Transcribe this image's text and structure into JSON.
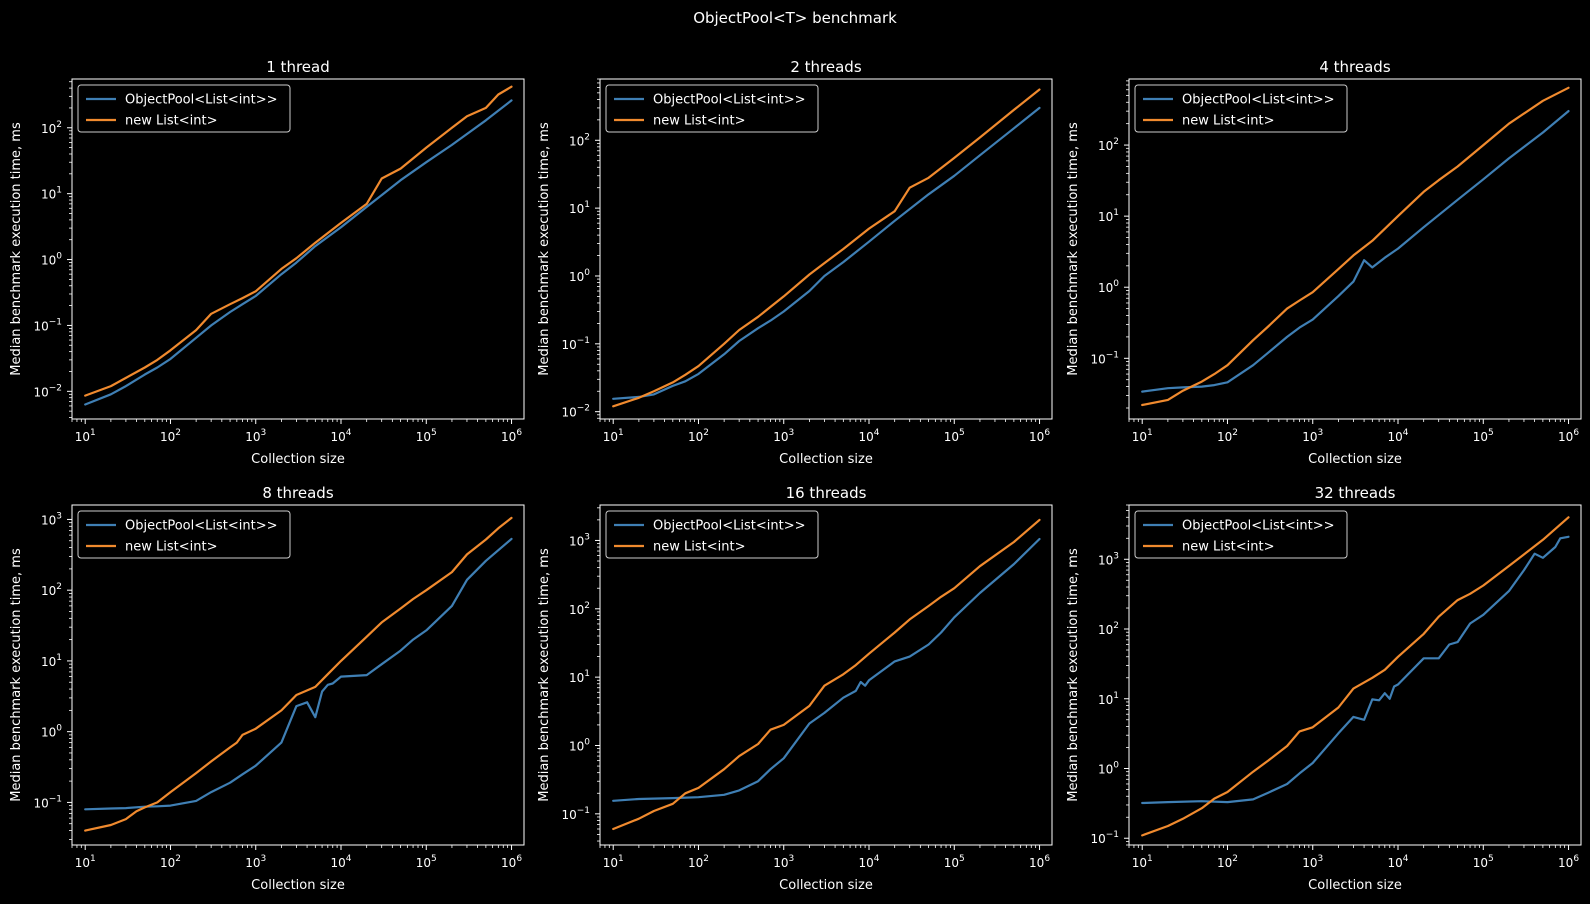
{
  "suptitle": "ObjectPool<T> benchmark",
  "colors": {
    "background": "#000000",
    "foreground": "#ffffff",
    "pool": "#3f7fb4",
    "new": "#f08a2e",
    "legend_edge": "#cccccc"
  },
  "chart_data": [
    {
      "type": "line",
      "title": "1 thread",
      "xlabel": "Collection size",
      "ylabel": "Median benchmark execution time, ms",
      "xscale": "log",
      "yscale": "log",
      "xlim": [
        7,
        1400000
      ],
      "ylim": [
        0.0038,
        550
      ],
      "xticks": [
        10,
        100,
        1000,
        10000,
        100000,
        1000000
      ],
      "xtick_labels": [
        [
          "10",
          "1"
        ],
        [
          "10",
          "2"
        ],
        [
          "10",
          "3"
        ],
        [
          "10",
          "4"
        ],
        [
          "10",
          "5"
        ],
        [
          "10",
          "6"
        ]
      ],
      "yticks": [
        0.01,
        0.1,
        1,
        10,
        100
      ],
      "ytick_labels": [
        [
          "10",
          "−2"
        ],
        [
          "10",
          "−1"
        ],
        [
          "10",
          "0"
        ],
        [
          "10",
          "1"
        ],
        [
          "10",
          "2"
        ]
      ],
      "legend": "upper left",
      "grid": false,
      "series": [
        {
          "name": "ObjectPool<List<int>>",
          "color": "#3f7fb4",
          "x": [
            10,
            20,
            30,
            50,
            70,
            100,
            200,
            300,
            500,
            700,
            1000,
            2000,
            3000,
            5000,
            10000,
            20000,
            30000,
            50000,
            100000,
            200000,
            500000,
            1000000
          ],
          "y": [
            0.0063,
            0.009,
            0.012,
            0.018,
            0.023,
            0.031,
            0.065,
            0.1,
            0.16,
            0.21,
            0.28,
            0.6,
            0.9,
            1.6,
            3.1,
            6.3,
            9.5,
            16,
            30,
            55,
            130,
            260
          ]
        },
        {
          "name": "new List<int>",
          "color": "#f08a2e",
          "x": [
            10,
            20,
            30,
            50,
            70,
            100,
            200,
            300,
            500,
            700,
            1000,
            2000,
            3000,
            5000,
            10000,
            20000,
            30000,
            50000,
            100000,
            200000,
            300000,
            500000,
            700000,
            1000000
          ],
          "y": [
            0.0086,
            0.012,
            0.016,
            0.023,
            0.03,
            0.042,
            0.085,
            0.15,
            0.21,
            0.26,
            0.33,
            0.72,
            1.05,
            1.8,
            3.6,
            7,
            17,
            24,
            50,
            100,
            150,
            200,
            320,
            420
          ]
        }
      ]
    },
    {
      "type": "line",
      "title": "2 threads",
      "xlabel": "Collection size",
      "ylabel": "Median benchmark execution time, ms",
      "xscale": "log",
      "yscale": "log",
      "xlim": [
        7,
        1400000
      ],
      "ylim": [
        0.0078,
        800
      ],
      "xticks": [
        10,
        100,
        1000,
        10000,
        100000,
        1000000
      ],
      "xtick_labels": [
        [
          "10",
          "1"
        ],
        [
          "10",
          "2"
        ],
        [
          "10",
          "3"
        ],
        [
          "10",
          "4"
        ],
        [
          "10",
          "5"
        ],
        [
          "10",
          "6"
        ]
      ],
      "yticks": [
        0.01,
        0.1,
        1,
        10,
        100
      ],
      "ytick_labels": [
        [
          "10",
          "−2"
        ],
        [
          "10",
          "−1"
        ],
        [
          "10",
          "0"
        ],
        [
          "10",
          "1"
        ],
        [
          "10",
          "2"
        ]
      ],
      "legend": "upper left",
      "grid": false,
      "series": [
        {
          "name": "ObjectPool<List<int>>",
          "color": "#3f7fb4",
          "x": [
            10,
            20,
            30,
            50,
            70,
            100,
            200,
            300,
            500,
            700,
            1000,
            2000,
            3000,
            5000,
            10000,
            20000,
            50000,
            100000,
            200000,
            500000,
            1000000
          ],
          "y": [
            0.0155,
            0.0165,
            0.018,
            0.024,
            0.028,
            0.036,
            0.07,
            0.11,
            0.17,
            0.22,
            0.3,
            0.6,
            1.0,
            1.6,
            3.2,
            6.5,
            16,
            30,
            60,
            150,
            300
          ]
        },
        {
          "name": "new List<int>",
          "color": "#f08a2e",
          "x": [
            10,
            20,
            30,
            50,
            70,
            100,
            200,
            300,
            500,
            700,
            1000,
            2000,
            3000,
            5000,
            10000,
            20000,
            30000,
            50000,
            100000,
            200000,
            500000,
            1000000
          ],
          "y": [
            0.012,
            0.016,
            0.02,
            0.027,
            0.035,
            0.047,
            0.1,
            0.16,
            0.25,
            0.35,
            0.5,
            1.05,
            1.55,
            2.5,
            5,
            9,
            20,
            28,
            55,
            110,
            280,
            560
          ]
        }
      ]
    },
    {
      "type": "line",
      "title": "4 threads",
      "xlabel": "Collection size",
      "ylabel": "Median benchmark execution time, ms",
      "xscale": "log",
      "yscale": "log",
      "xlim": [
        7,
        1400000
      ],
      "ylim": [
        0.014,
        850
      ],
      "xticks": [
        10,
        100,
        1000,
        10000,
        100000,
        1000000
      ],
      "xtick_labels": [
        [
          "10",
          "1"
        ],
        [
          "10",
          "2"
        ],
        [
          "10",
          "3"
        ],
        [
          "10",
          "4"
        ],
        [
          "10",
          "5"
        ],
        [
          "10",
          "6"
        ]
      ],
      "yticks": [
        0.1,
        1,
        10,
        100
      ],
      "ytick_labels": [
        [
          "10",
          "−1"
        ],
        [
          "10",
          "0"
        ],
        [
          "10",
          "1"
        ],
        [
          "10",
          "2"
        ]
      ],
      "legend": "upper left",
      "grid": false,
      "series": [
        {
          "name": "ObjectPool<List<int>>",
          "color": "#3f7fb4",
          "x": [
            10,
            20,
            30,
            50,
            70,
            100,
            200,
            300,
            500,
            700,
            1000,
            2000,
            3000,
            4000,
            5000,
            7000,
            10000,
            20000,
            50000,
            100000,
            200000,
            500000,
            1000000
          ],
          "y": [
            0.034,
            0.038,
            0.039,
            0.04,
            0.042,
            0.046,
            0.08,
            0.12,
            0.2,
            0.27,
            0.35,
            0.75,
            1.2,
            2.4,
            1.9,
            2.6,
            3.5,
            7,
            17,
            33,
            65,
            150,
            300
          ]
        },
        {
          "name": "new List<int>",
          "color": "#f08a2e",
          "x": [
            10,
            20,
            30,
            50,
            70,
            100,
            200,
            300,
            500,
            700,
            1000,
            2000,
            3000,
            5000,
            10000,
            20000,
            30000,
            50000,
            100000,
            200000,
            500000,
            1000000
          ],
          "y": [
            0.022,
            0.026,
            0.035,
            0.047,
            0.06,
            0.08,
            0.18,
            0.28,
            0.5,
            0.65,
            0.85,
            1.8,
            2.8,
            4.5,
            10,
            22,
            32,
            50,
            100,
            200,
            420,
            640
          ]
        }
      ]
    },
    {
      "type": "line",
      "title": "8 threads",
      "xlabel": "Collection size",
      "ylabel": "Median benchmark execution time, ms",
      "xscale": "log",
      "yscale": "log",
      "xlim": [
        7,
        1400000
      ],
      "ylim": [
        0.025,
        1600
      ],
      "xticks": [
        10,
        100,
        1000,
        10000,
        100000,
        1000000
      ],
      "xtick_labels": [
        [
          "10",
          "1"
        ],
        [
          "10",
          "2"
        ],
        [
          "10",
          "3"
        ],
        [
          "10",
          "4"
        ],
        [
          "10",
          "5"
        ],
        [
          "10",
          "6"
        ]
      ],
      "yticks": [
        0.1,
        1,
        10,
        100,
        1000
      ],
      "ytick_labels": [
        [
          "10",
          "−1"
        ],
        [
          "10",
          "0"
        ],
        [
          "10",
          "1"
        ],
        [
          "10",
          "2"
        ],
        [
          "10",
          "3"
        ]
      ],
      "legend": "upper left",
      "grid": false,
      "series": [
        {
          "name": "ObjectPool<List<int>>",
          "color": "#3f7fb4",
          "x": [
            10,
            20,
            30,
            50,
            70,
            100,
            200,
            300,
            500,
            700,
            1000,
            2000,
            3000,
            4000,
            5000,
            6000,
            7000,
            8000,
            10000,
            20000,
            30000,
            50000,
            70000,
            100000,
            200000,
            300000,
            500000,
            1000000
          ],
          "y": [
            0.08,
            0.082,
            0.083,
            0.087,
            0.088,
            0.09,
            0.105,
            0.14,
            0.19,
            0.25,
            0.33,
            0.7,
            2.3,
            2.6,
            1.6,
            3.7,
            4.6,
            4.8,
            6,
            6.3,
            9,
            14,
            20,
            27,
            60,
            140,
            260,
            530
          ]
        },
        {
          "name": "new List<int>",
          "color": "#f08a2e",
          "x": [
            10,
            20,
            30,
            40,
            50,
            70,
            100,
            200,
            300,
            500,
            600,
            700,
            1000,
            2000,
            3000,
            5000,
            7000,
            10000,
            20000,
            30000,
            50000,
            70000,
            100000,
            200000,
            300000,
            500000,
            700000,
            1000000
          ],
          "y": [
            0.04,
            0.048,
            0.058,
            0.075,
            0.085,
            0.1,
            0.14,
            0.26,
            0.38,
            0.6,
            0.7,
            0.9,
            1.1,
            2,
            3.3,
            4.3,
            6.5,
            10,
            22,
            35,
            55,
            75,
            100,
            180,
            320,
            520,
            750,
            1050
          ]
        }
      ]
    },
    {
      "type": "line",
      "title": "16 threads",
      "xlabel": "Collection size",
      "ylabel": "Median benchmark execution time, ms",
      "xscale": "log",
      "yscale": "log",
      "xlim": [
        7,
        1400000
      ],
      "ylim": [
        0.035,
        3300
      ],
      "xticks": [
        10,
        100,
        1000,
        10000,
        100000,
        1000000
      ],
      "xtick_labels": [
        [
          "10",
          "1"
        ],
        [
          "10",
          "2"
        ],
        [
          "10",
          "3"
        ],
        [
          "10",
          "4"
        ],
        [
          "10",
          "5"
        ],
        [
          "10",
          "6"
        ]
      ],
      "yticks": [
        0.1,
        1,
        10,
        100,
        1000
      ],
      "ytick_labels": [
        [
          "10",
          "−1"
        ],
        [
          "10",
          "0"
        ],
        [
          "10",
          "1"
        ],
        [
          "10",
          "2"
        ],
        [
          "10",
          "3"
        ]
      ],
      "legend": "upper left",
      "grid": false,
      "series": [
        {
          "name": "ObjectPool<List<int>>",
          "color": "#3f7fb4",
          "x": [
            10,
            20,
            50,
            100,
            200,
            300,
            500,
            700,
            1000,
            2000,
            3000,
            5000,
            7000,
            8000,
            9000,
            10000,
            20000,
            30000,
            50000,
            70000,
            100000,
            200000,
            500000,
            1000000
          ],
          "y": [
            0.155,
            0.165,
            0.17,
            0.175,
            0.19,
            0.22,
            0.3,
            0.45,
            0.65,
            2.1,
            3,
            5,
            6.3,
            8.5,
            7.5,
            9,
            17,
            20,
            30,
            45,
            75,
            170,
            450,
            1050
          ]
        },
        {
          "name": "new List<int>",
          "color": "#f08a2e",
          "x": [
            10,
            20,
            30,
            50,
            70,
            100,
            200,
            300,
            500,
            700,
            1000,
            2000,
            3000,
            5000,
            7000,
            10000,
            20000,
            30000,
            50000,
            70000,
            100000,
            200000,
            500000,
            1000000
          ],
          "y": [
            0.06,
            0.085,
            0.11,
            0.14,
            0.2,
            0.24,
            0.45,
            0.7,
            1.05,
            1.7,
            2,
            3.8,
            7.5,
            11,
            15,
            22,
            45,
            70,
            110,
            150,
            200,
            420,
            950,
            2000
          ]
        }
      ]
    },
    {
      "type": "line",
      "title": "32 threads",
      "xlabel": "Collection size",
      "ylabel": "Median benchmark execution time, ms",
      "xscale": "log",
      "yscale": "log",
      "xlim": [
        7,
        1400000
      ],
      "ylim": [
        0.08,
        6000
      ],
      "xticks": [
        10,
        100,
        1000,
        10000,
        100000,
        1000000
      ],
      "xtick_labels": [
        [
          "10",
          "1"
        ],
        [
          "10",
          "2"
        ],
        [
          "10",
          "3"
        ],
        [
          "10",
          "4"
        ],
        [
          "10",
          "5"
        ],
        [
          "10",
          "6"
        ]
      ],
      "yticks": [
        0.1,
        1,
        10,
        100,
        1000
      ],
      "ytick_labels": [
        [
          "10",
          "−1"
        ],
        [
          "10",
          "0"
        ],
        [
          "10",
          "1"
        ],
        [
          "10",
          "2"
        ],
        [
          "10",
          "3"
        ]
      ],
      "legend": "upper left",
      "grid": false,
      "series": [
        {
          "name": "ObjectPool<List<int>>",
          "color": "#3f7fb4",
          "x": [
            10,
            20,
            50,
            100,
            200,
            300,
            500,
            700,
            1000,
            2000,
            3000,
            4000,
            5000,
            6000,
            7000,
            8000,
            9000,
            10000,
            20000,
            30000,
            40000,
            50000,
            70000,
            100000,
            200000,
            300000,
            400000,
            500000,
            700000,
            800000,
            1000000
          ],
          "y": [
            0.32,
            0.33,
            0.34,
            0.33,
            0.36,
            0.45,
            0.6,
            0.85,
            1.2,
            3.2,
            5.5,
            5,
            9.8,
            9.5,
            12,
            10,
            15,
            16,
            38,
            38,
            60,
            65,
            120,
            160,
            350,
            700,
            1200,
            1050,
            1500,
            2000,
            2100
          ]
        },
        {
          "name": "new List<int>",
          "color": "#f08a2e",
          "x": [
            10,
            20,
            30,
            50,
            70,
            100,
            200,
            300,
            500,
            700,
            1000,
            2000,
            3000,
            5000,
            7000,
            10000,
            20000,
            30000,
            50000,
            70000,
            100000,
            200000,
            500000,
            1000000
          ],
          "y": [
            0.11,
            0.15,
            0.19,
            0.27,
            0.37,
            0.46,
            0.9,
            1.3,
            2.1,
            3.4,
            3.9,
            7.5,
            14,
            20,
            26,
            40,
            85,
            150,
            260,
            320,
            420,
            800,
            1900,
            4000
          ]
        }
      ]
    }
  ]
}
